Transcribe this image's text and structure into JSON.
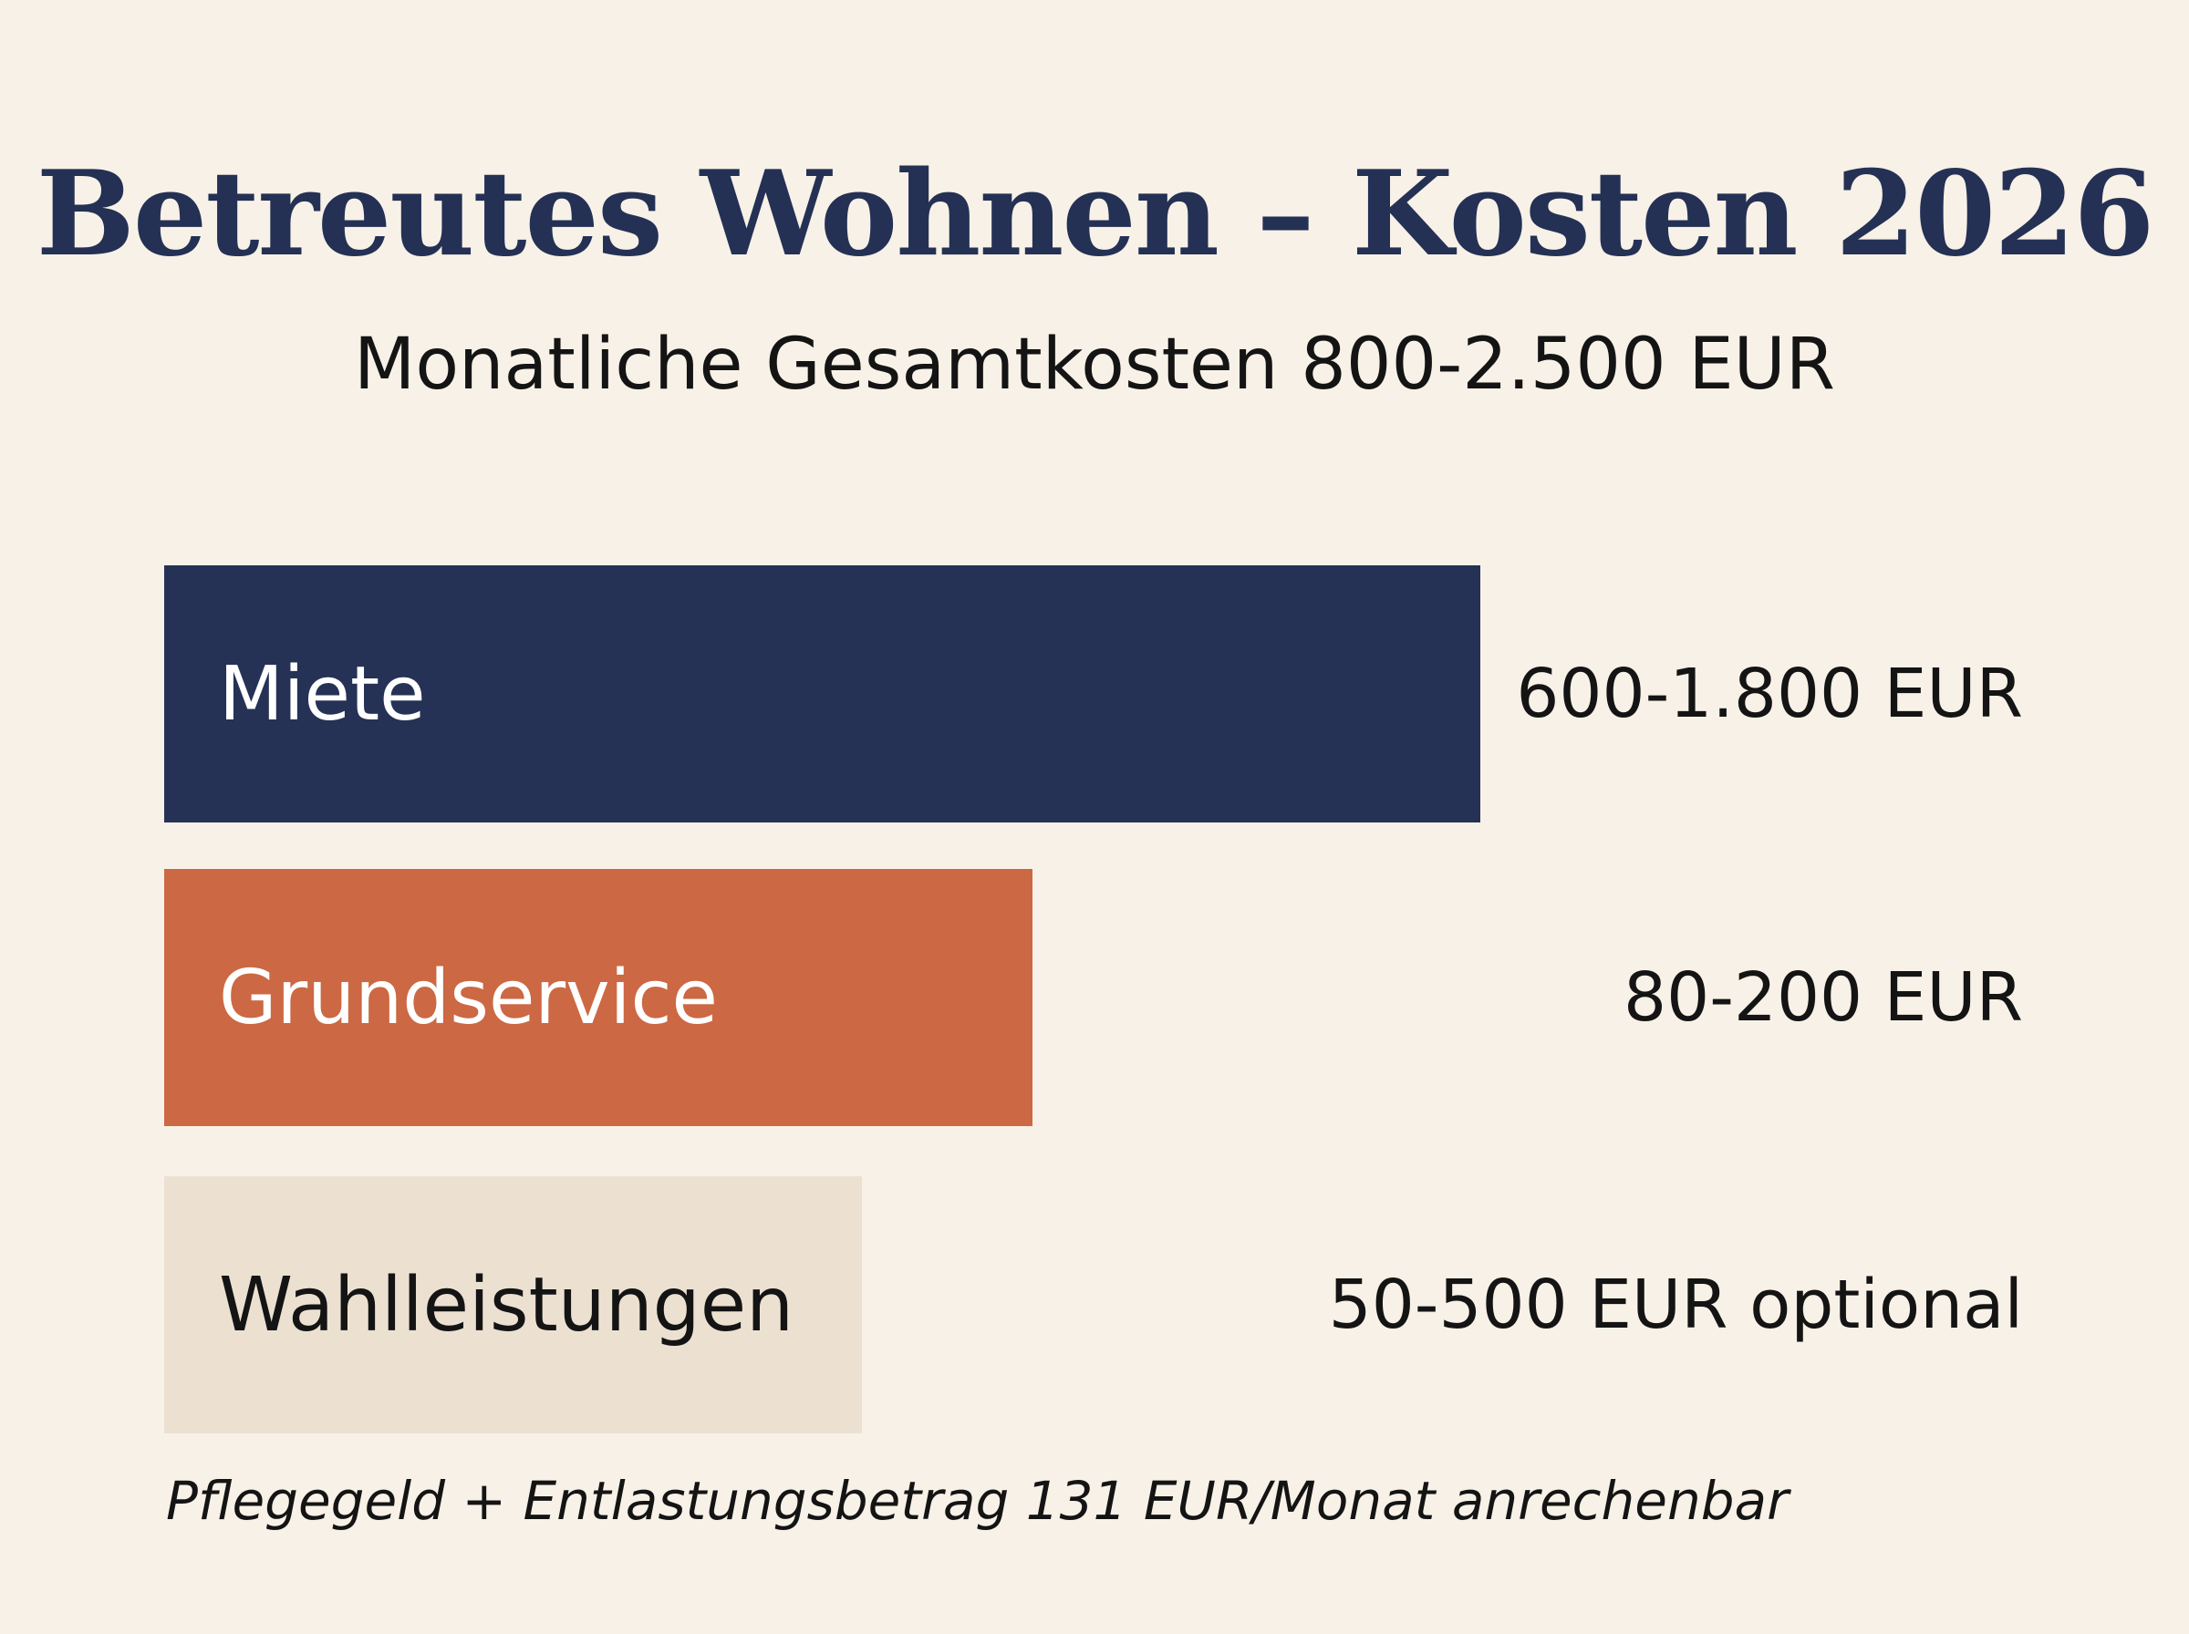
{
  "chart_data": {
    "type": "bar",
    "orientation": "horizontal",
    "title": "Betreutes Wohnen – Kosten 2026",
    "subtitle": "Monatliche Gesamtkosten 800-2.500 EUR",
    "categories": [
      "Miete",
      "Grundservice",
      "Wahlleistungen"
    ],
    "value_labels": [
      "600-1.800 EUR",
      "80-200 EUR",
      "50-500 EUR optional"
    ],
    "relative_lengths": [
      1.0,
      0.66,
      0.53
    ],
    "colors": [
      "#253256",
      "#cc6843",
      "#ece1d1"
    ],
    "label_colors": [
      "#ffffff",
      "#ffffff",
      "#141414"
    ],
    "footnote": "Pflegegeld + Entlastungsbetrag 131 EUR/Monat anrechenbar",
    "grid": false,
    "legend": "none"
  }
}
